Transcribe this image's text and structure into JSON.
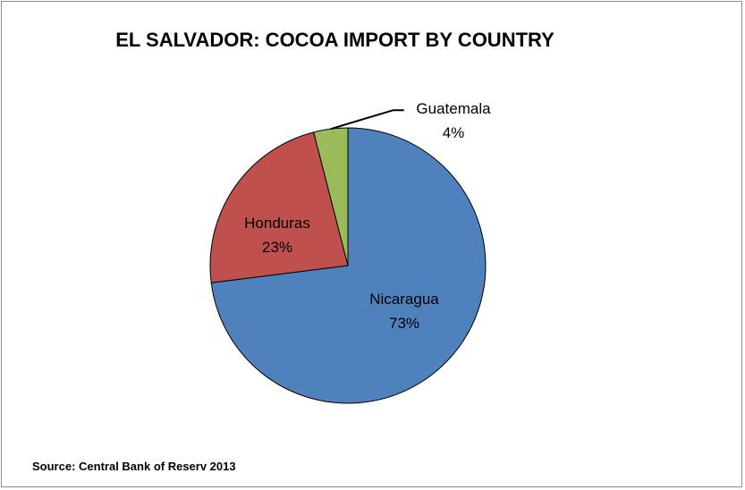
{
  "chart_data": {
    "type": "pie",
    "title": "EL SALVADOR: COCOA IMPORT BY COUNTRY",
    "slices": [
      {
        "label": "Nicaragua",
        "value": 73,
        "value_label": "73%",
        "color": "#4f81bd"
      },
      {
        "label": "Honduras",
        "value": 23,
        "value_label": "23%",
        "color": "#c0504d"
      },
      {
        "label": "Guatemala",
        "value": 4,
        "value_label": "4%",
        "color": "#9bbb59"
      }
    ],
    "legend": "none"
  },
  "footer": {
    "source": "Source: Central Bank of Reserv 2013"
  }
}
